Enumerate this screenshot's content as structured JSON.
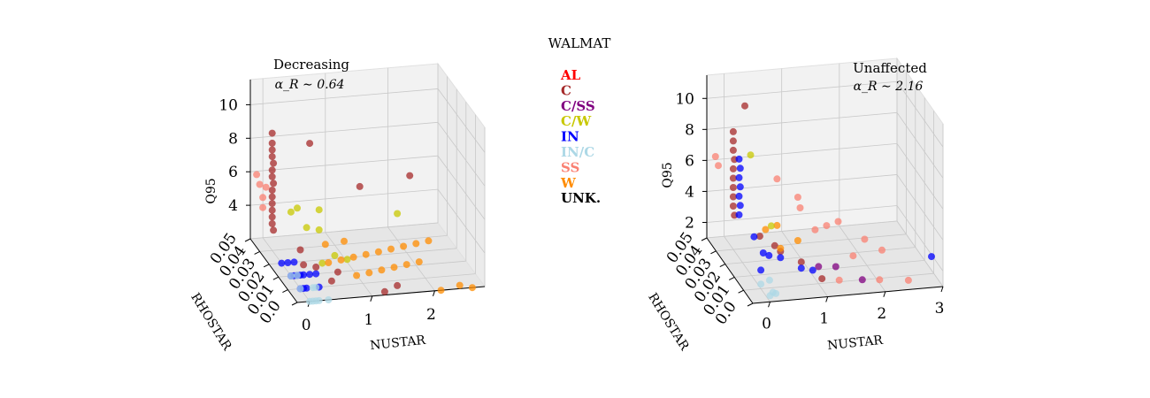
{
  "figure": {
    "suptitle": "WALMAT"
  },
  "legend": [
    {
      "label": "AL",
      "color": "#ff0000"
    },
    {
      "label": "C",
      "color": "#a52a2a"
    },
    {
      "label": "C/SS",
      "color": "#800080"
    },
    {
      "label": "C/W",
      "color": "#c8c800"
    },
    {
      "label": "IN",
      "color": "#0000ff"
    },
    {
      "label": "IN/C",
      "color": "#add8e6"
    },
    {
      "label": "SS",
      "color": "#fa8072"
    },
    {
      "label": "W",
      "color": "#ff8c00"
    },
    {
      "label": "UNK.",
      "color": "#000000"
    }
  ],
  "chart_data": [
    {
      "type": "scatter",
      "title": "Decreasing",
      "subtitle": "α_R ∼ 0.64",
      "xlabel": "NUSTAR",
      "ylabel": "RHOSTAR",
      "zlabel": "Q95",
      "xlim": [
        -0.2,
        2.8
      ],
      "ylim": [
        0.0,
        0.05
      ],
      "zlim": [
        2,
        11.5
      ],
      "x_ticks": [
        0,
        1,
        2
      ],
      "y_ticks": [
        0.0,
        0.01,
        0.02,
        0.03,
        0.04,
        0.05
      ],
      "z_ticks": [
        4,
        6,
        8,
        10
      ],
      "x_tick_labels": [
        "0",
        "1",
        "2"
      ],
      "y_tick_labels": [
        "0.0",
        "0.01",
        "0.02",
        "0.03",
        "0.04",
        "0.05"
      ],
      "z_tick_labels": [
        "4",
        "6",
        "8",
        "10"
      ],
      "grid": true,
      "series": [
        {
          "name": "C",
          "color": "#a52a2a",
          "points": [
            [
              0.0,
              0.04,
              8.4
            ],
            [
              0.0,
              0.04,
              8.0
            ],
            [
              0.0,
              0.04,
              7.6
            ],
            [
              0.02,
              0.04,
              7.2
            ],
            [
              0.0,
              0.04,
              6.8
            ],
            [
              0.0,
              0.04,
              6.4
            ],
            [
              0.02,
              0.04,
              6.0
            ],
            [
              0.0,
              0.04,
              5.6
            ],
            [
              0.0,
              0.04,
              5.2
            ],
            [
              0.0,
              0.04,
              4.8
            ],
            [
              0.0,
              0.04,
              4.4
            ],
            [
              0.0,
              0.04,
              4.0
            ],
            [
              0.0,
              0.04,
              3.6
            ],
            [
              0.02,
              0.04,
              3.2
            ],
            [
              0.0,
              0.04,
              9.0
            ],
            [
              0.6,
              0.04,
              8.2
            ],
            [
              0.8,
              0.0,
              8.6
            ],
            [
              1.6,
              0.0,
              9.0
            ],
            [
              0.2,
              0.02,
              2.6
            ],
            [
              0.4,
              0.02,
              2.4
            ],
            [
              0.6,
              0.01,
              2.8
            ],
            [
              0.5,
              0.01,
              2.3
            ],
            [
              1.2,
              0.0,
              2.2
            ],
            [
              1.4,
              0.0,
              2.5
            ],
            [
              0.3,
              0.03,
              2.7
            ]
          ]
        },
        {
          "name": "SS",
          "color": "#fa8072",
          "points": [
            [
              -0.1,
              0.05,
              5.8
            ],
            [
              -0.05,
              0.05,
              5.2
            ],
            [
              0.0,
              0.05,
              4.4
            ],
            [
              0.0,
              0.05,
              3.8
            ],
            [
              0.05,
              0.05,
              5.0
            ]
          ]
        },
        {
          "name": "C/W",
          "color": "#c8c800",
          "points": [
            [
              0.3,
              0.04,
              4.2
            ],
            [
              0.4,
              0.04,
              4.4
            ],
            [
              0.6,
              0.03,
              5.0
            ],
            [
              0.6,
              0.03,
              3.8
            ],
            [
              1.4,
              0.0,
              6.8
            ],
            [
              0.5,
              0.02,
              2.6
            ],
            [
              0.9,
              0.02,
              2.7
            ],
            [
              0.7,
              0.02,
              3.0
            ],
            [
              0.4,
              0.03,
              4.0
            ]
          ]
        },
        {
          "name": "W",
          "color": "#ff8c00",
          "points": [
            [
              0.6,
              0.02,
              2.6
            ],
            [
              0.8,
              0.02,
              2.7
            ],
            [
              1.0,
              0.02,
              2.8
            ],
            [
              1.2,
              0.02,
              2.9
            ],
            [
              1.4,
              0.02,
              3.0
            ],
            [
              1.6,
              0.02,
              3.1
            ],
            [
              1.8,
              0.02,
              3.2
            ],
            [
              2.0,
              0.02,
              3.3
            ],
            [
              2.2,
              0.02,
              3.4
            ],
            [
              0.9,
              0.01,
              2.5
            ],
            [
              1.1,
              0.01,
              2.6
            ],
            [
              1.3,
              0.01,
              2.7
            ],
            [
              1.5,
              0.01,
              2.8
            ],
            [
              1.7,
              0.01,
              2.9
            ],
            [
              1.9,
              0.01,
              3.0
            ],
            [
              2.4,
              0.0,
              2.2
            ],
            [
              2.6,
              0.0,
              1.8
            ],
            [
              2.1,
              0.0,
              1.5
            ],
            [
              0.7,
              0.03,
              2.9
            ],
            [
              1.0,
              0.03,
              3.0
            ]
          ]
        },
        {
          "name": "IN",
          "color": "#0000ff",
          "points": [
            [
              0.0,
              0.02,
              1.5
            ],
            [
              0.05,
              0.02,
              1.7
            ],
            [
              0.1,
              0.02,
              1.6
            ],
            [
              0.15,
              0.02,
              1.8
            ],
            [
              0.2,
              0.02,
              1.5
            ],
            [
              0.0,
              0.01,
              1.6
            ],
            [
              0.05,
              0.01,
              1.9
            ],
            [
              0.1,
              0.01,
              1.7
            ],
            [
              0.3,
              0.01,
              1.6
            ],
            [
              0.2,
              0.03,
              1.8
            ],
            [
              0.3,
              0.02,
              1.9
            ],
            [
              0.4,
              0.02,
              1.5
            ],
            [
              0.0,
              0.03,
              1.9
            ],
            [
              0.1,
              0.03,
              2.0
            ]
          ]
        },
        {
          "name": "IN/C",
          "color": "#add8e6",
          "points": [
            [
              0.0,
              0.0,
              1.3
            ],
            [
              0.05,
              0.0,
              1.5
            ],
            [
              0.1,
              0.0,
              1.4
            ],
            [
              0.0,
              0.01,
              1.3
            ],
            [
              0.15,
              0.0,
              1.6
            ],
            [
              0.2,
              0.01,
              1.4
            ],
            [
              0.3,
              0.0,
              1.3
            ],
            [
              0.0,
              0.02,
              1.2
            ],
            [
              0.25,
              0.01,
              1.2
            ],
            [
              0.1,
              0.02,
              1.3
            ]
          ]
        }
      ]
    },
    {
      "type": "scatter",
      "title": "Unaffected",
      "subtitle": "α_R ∼ 2.16",
      "xlabel": "NUSTAR",
      "ylabel": "RHOSTAR",
      "zlabel": "Q95",
      "xlim": [
        -0.3,
        3.0
      ],
      "ylim": [
        0.0,
        0.05
      ],
      "zlim": [
        1,
        11.5
      ],
      "x_ticks": [
        0,
        1,
        2,
        3
      ],
      "y_ticks": [
        0.0,
        0.01,
        0.02,
        0.03,
        0.04,
        0.05
      ],
      "z_ticks": [
        2,
        4,
        6,
        8,
        10
      ],
      "x_tick_labels": [
        "0",
        "1",
        "2",
        "3"
      ],
      "y_tick_labels": [
        "0.0",
        "0.01",
        "0.02",
        "0.03",
        "0.04",
        "0.05"
      ],
      "z_tick_labels": [
        "2",
        "4",
        "6",
        "8",
        "10"
      ],
      "grid": true,
      "series": [
        {
          "name": "C",
          "color": "#a52a2a",
          "points": [
            [
              0.0,
              0.04,
              8.6
            ],
            [
              0.0,
              0.04,
              8.0
            ],
            [
              0.0,
              0.04,
              7.4
            ],
            [
              0.02,
              0.04,
              6.8
            ],
            [
              0.0,
              0.04,
              6.2
            ],
            [
              0.0,
              0.04,
              5.6
            ],
            [
              0.0,
              0.04,
              5.0
            ],
            [
              0.0,
              0.04,
              4.4
            ],
            [
              0.0,
              0.04,
              3.8
            ],
            [
              0.02,
              0.04,
              3.2
            ],
            [
              0.2,
              0.04,
              10.2
            ],
            [
              0.3,
              0.03,
              2.6
            ],
            [
              0.5,
              0.02,
              2.4
            ],
            [
              0.7,
              0.01,
              2.5
            ],
            [
              0.9,
              0.0,
              2.2
            ],
            [
              0.4,
              0.02,
              2.8
            ]
          ]
        },
        {
          "name": "SS",
          "color": "#fa8072",
          "points": [
            [
              -0.15,
              0.05,
              6.2
            ],
            [
              -0.1,
              0.05,
              5.6
            ],
            [
              0.6,
              0.03,
              6.2
            ],
            [
              0.8,
              0.02,
              5.8
            ],
            [
              1.1,
              0.02,
              3.6
            ],
            [
              1.3,
              0.02,
              3.8
            ],
            [
              1.5,
              0.02,
              4.0
            ],
            [
              1.8,
              0.01,
              3.6
            ],
            [
              2.1,
              0.01,
              2.8
            ],
            [
              2.4,
              0.0,
              1.6
            ],
            [
              1.6,
              0.01,
              2.6
            ],
            [
              1.2,
              0.0,
              2.0
            ],
            [
              1.9,
              0.0,
              1.8
            ],
            [
              1.0,
              0.03,
              4.2
            ]
          ]
        },
        {
          "name": "IN",
          "color": "#0000ff",
          "points": [
            [
              0.1,
              0.04,
              6.8
            ],
            [
              0.12,
              0.04,
              6.2
            ],
            [
              0.1,
              0.04,
              5.6
            ],
            [
              0.12,
              0.04,
              5.0
            ],
            [
              0.1,
              0.04,
              4.4
            ],
            [
              0.12,
              0.04,
              3.8
            ],
            [
              0.1,
              0.04,
              3.2
            ],
            [
              0.2,
              0.03,
              2.6
            ],
            [
              0.3,
              0.02,
              2.2
            ],
            [
              0.5,
              0.02,
              2.0
            ],
            [
              0.7,
              0.01,
              2.1
            ],
            [
              0.9,
              0.01,
              1.9
            ],
            [
              0.2,
              0.02,
              2.4
            ],
            [
              0.0,
              0.01,
              2.2
            ],
            [
              2.8,
              0.0,
              3.0
            ]
          ]
        },
        {
          "name": "IN/C",
          "color": "#add8e6",
          "points": [
            [
              0.0,
              0.0,
              1.4
            ],
            [
              0.05,
              0.0,
              1.6
            ],
            [
              0.1,
              0.0,
              1.5
            ],
            [
              0.0,
              0.01,
              1.3
            ],
            [
              0.15,
              0.01,
              1.5
            ]
          ]
        },
        {
          "name": "W",
          "color": "#ff8c00",
          "points": [
            [
              0.4,
              0.03,
              3.0
            ],
            [
              0.6,
              0.03,
              3.2
            ],
            [
              0.8,
              0.02,
              3.0
            ],
            [
              0.5,
              0.02,
              2.6
            ]
          ]
        },
        {
          "name": "C/W",
          "color": "#c8c800",
          "points": [
            [
              0.3,
              0.04,
              7.0
            ],
            [
              0.5,
              0.03,
              3.2
            ]
          ]
        },
        {
          "name": "C/SS",
          "color": "#800080",
          "points": [
            [
              1.3,
              0.01,
              2.0
            ],
            [
              1.6,
              0.0,
              1.9
            ],
            [
              1.0,
              0.01,
              2.1
            ]
          ]
        }
      ]
    }
  ]
}
